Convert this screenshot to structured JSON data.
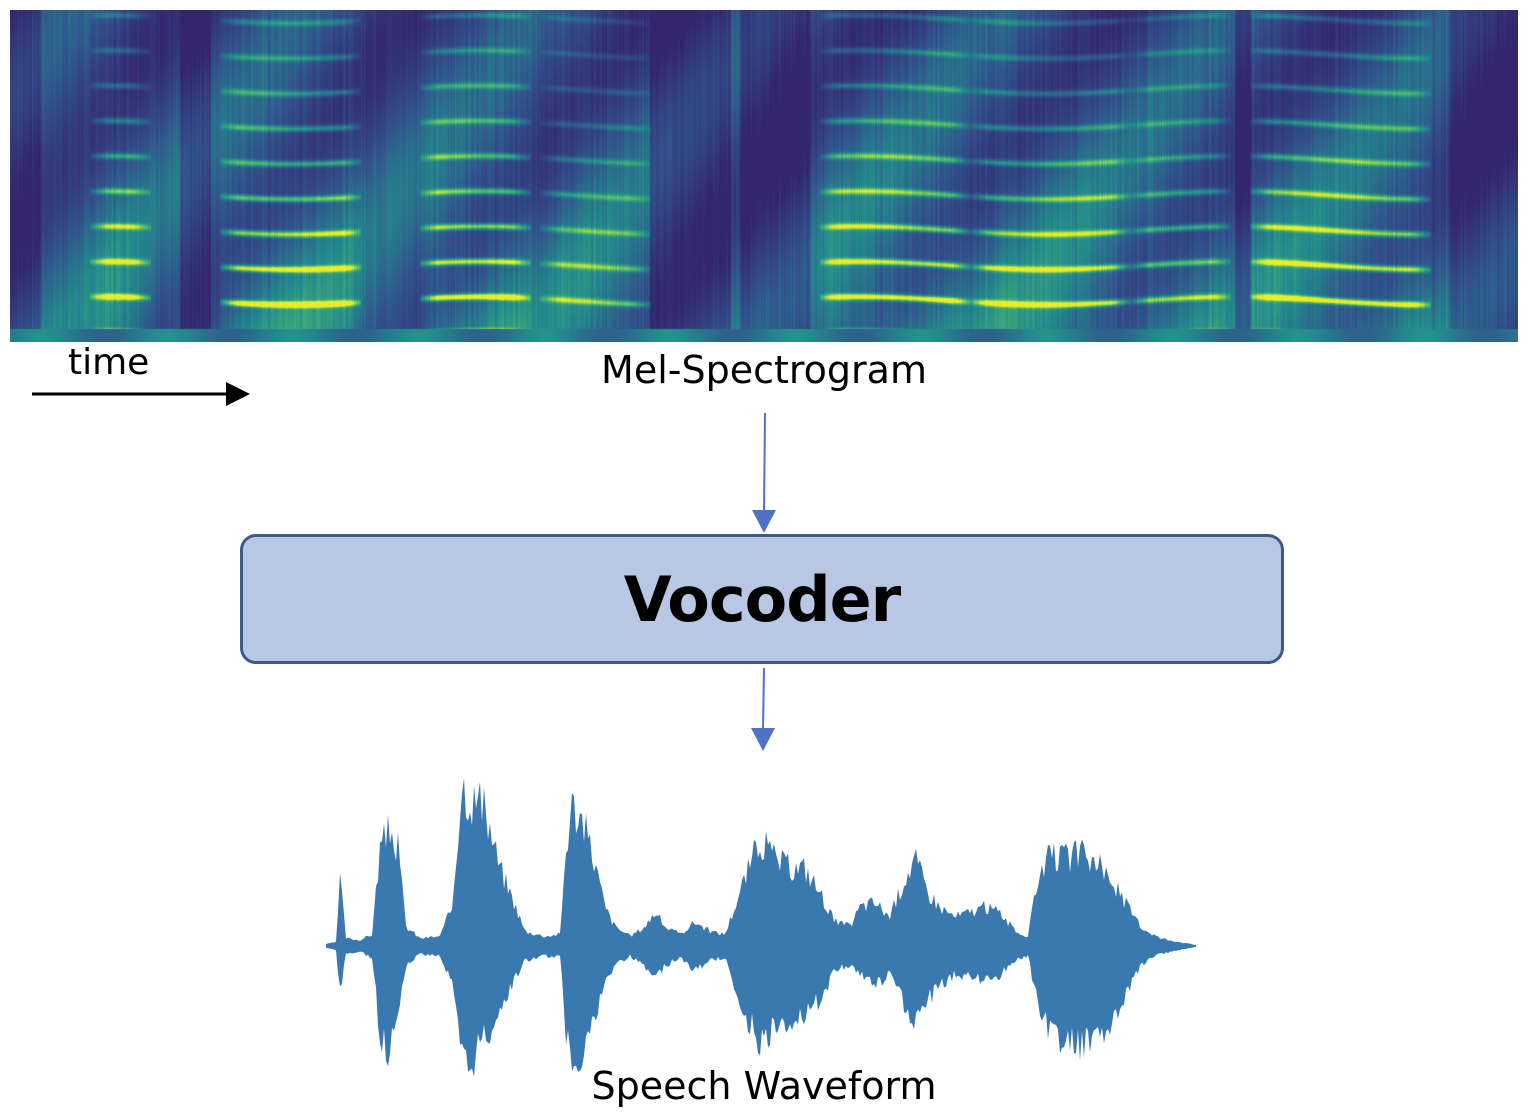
{
  "diagram": {
    "time_label": "time",
    "spectrogram_label": "Mel-Spectrogram",
    "vocoder_label": "Vocoder",
    "waveform_label": "Speech Waveform"
  },
  "colors": {
    "arrow_blue": "#4f72c4",
    "box_fill": "#b7c7e4",
    "box_border": "#3d5a8c",
    "waveform": "#3a78b0",
    "spectrogram_low": "#3b3a80",
    "spectrogram_mid": "#2e8f8c",
    "spectrogram_high": "#e3e832"
  }
}
